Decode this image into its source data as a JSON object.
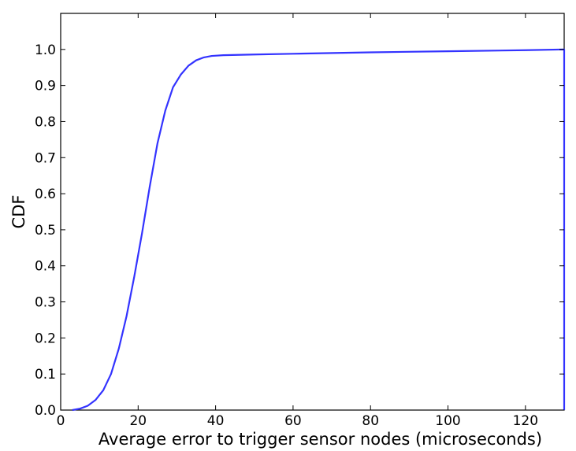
{
  "chart_data": {
    "type": "line",
    "title": "",
    "xlabel": "Average error to trigger sensor nodes (microseconds)",
    "ylabel": "CDF",
    "xlim": [
      0,
      130
    ],
    "ylim": [
      0,
      1.1
    ],
    "grid": false,
    "x_ticks": [
      0,
      20,
      40,
      60,
      80,
      100,
      120
    ],
    "x_tick_labels": [
      "0",
      "20",
      "40",
      "60",
      "80",
      "100",
      "120"
    ],
    "y_ticks": [
      0.0,
      0.1,
      0.2,
      0.3,
      0.4,
      0.5,
      0.6,
      0.7,
      0.8,
      0.9,
      1.0
    ],
    "y_tick_labels": [
      "0.0",
      "0.1",
      "0.2",
      "0.3",
      "0.4",
      "0.5",
      "0.6",
      "0.7",
      "0.8",
      "0.9",
      "1.0"
    ],
    "series": [
      {
        "color": "#3333ff",
        "x": [
          3,
          5,
          7,
          9,
          11,
          13,
          15,
          17,
          19,
          21,
          23,
          25,
          27,
          29,
          31,
          33,
          35,
          37,
          39,
          42,
          50,
          60,
          80,
          100,
          120,
          130,
          130
        ],
        "y": [
          0.0,
          0.004,
          0.012,
          0.028,
          0.055,
          0.1,
          0.17,
          0.26,
          0.37,
          0.49,
          0.62,
          0.74,
          0.83,
          0.895,
          0.93,
          0.955,
          0.97,
          0.978,
          0.982,
          0.984,
          0.986,
          0.988,
          0.992,
          0.995,
          0.998,
          1.0,
          0.0
        ]
      }
    ]
  }
}
